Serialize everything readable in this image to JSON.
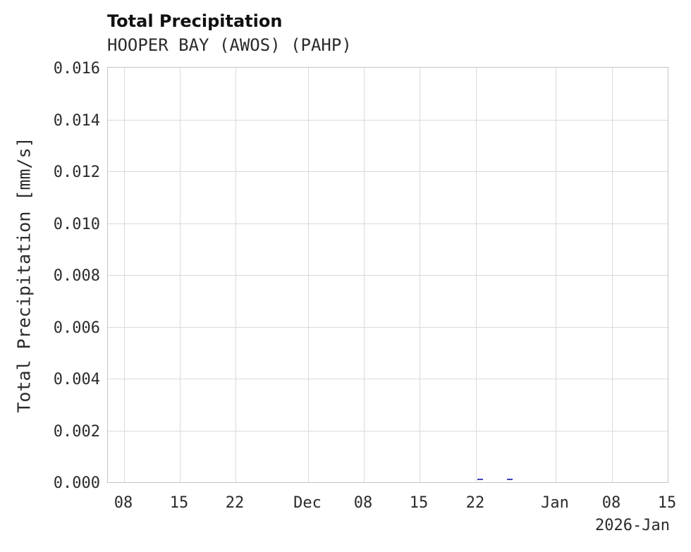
{
  "chart_data": {
    "type": "line",
    "title": "Total Precipitation",
    "subtitle": "HOOPER BAY (AWOS) (PAHP)",
    "ylabel": "Total Precipitation [mm/s]",
    "x_period_label": "2026-Jan",
    "ylim": [
      0,
      0.016
    ],
    "y_ticks": [
      0.0,
      0.002,
      0.004,
      0.006,
      0.008,
      0.01,
      0.012,
      0.014,
      0.016
    ],
    "y_tick_decimals": 3,
    "x_domain_days": [
      0,
      70
    ],
    "x_ticks": [
      {
        "label": "08",
        "day": 2
      },
      {
        "label": "15",
        "day": 9
      },
      {
        "label": "22",
        "day": 16
      },
      {
        "label": "Dec",
        "day": 25
      },
      {
        "label": "08",
        "day": 32
      },
      {
        "label": "15",
        "day": 39
      },
      {
        "label": "22",
        "day": 46
      },
      {
        "label": "Jan",
        "day": 56
      },
      {
        "label": "08",
        "day": 63
      },
      {
        "label": "15",
        "day": 70
      }
    ],
    "grid": true,
    "legend": "none",
    "colors": {
      "series": "#4040b8",
      "gridline": "#dadada",
      "axis_border": "#c4c4c4",
      "text": "#2b2b2b"
    },
    "series": [
      {
        "name": "Total Precipitation",
        "unit": "mm/s",
        "color": "#4040b8",
        "note": "trace is at or near zero; only two tiny non-zero blips visible near Dec 22 and Dec 26",
        "segments": [
          [
            {
              "day": 46.2,
              "value": 0.0001
            },
            {
              "day": 46.9,
              "value": 0.0001
            }
          ],
          [
            {
              "day": 49.9,
              "value": 0.0001
            },
            {
              "day": 50.6,
              "value": 0.0001
            }
          ]
        ]
      }
    ]
  }
}
